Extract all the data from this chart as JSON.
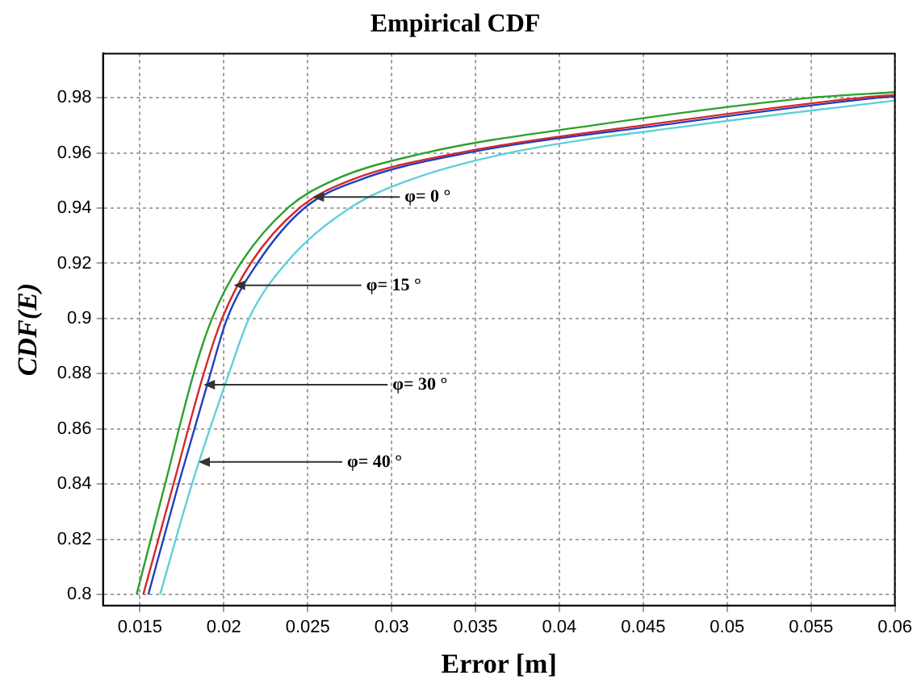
{
  "chart_data": {
    "type": "line",
    "title": "Empirical CDF",
    "xlabel": "Error [m]",
    "ylabel": "CDF(E)",
    "xlim": [
      0.0128,
      0.06
    ],
    "xticks": [
      0.015,
      0.02,
      0.025,
      0.03,
      0.035,
      0.04,
      0.045,
      0.05,
      0.055,
      0.06
    ],
    "ylim": [
      0.796,
      0.996
    ],
    "yticks": [
      0.8,
      0.82,
      0.84,
      0.86,
      0.88,
      0.9,
      0.92,
      0.94,
      0.96,
      0.98
    ],
    "grid": true,
    "legend": false,
    "marker": "none",
    "line_style": "solid",
    "series": [
      {
        "color": "#2ca02c",
        "x": [
          0.0148,
          0.0165,
          0.0182,
          0.0193,
          0.021,
          0.0238,
          0.0265,
          0.032,
          0.042,
          0.055,
          0.06
        ],
        "values": [
          0.8,
          0.84,
          0.88,
          0.9,
          0.92,
          0.94,
          0.95,
          0.96,
          0.97,
          0.98,
          0.982
        ]
      },
      {
        "color": "#d62728",
        "x": [
          0.0152,
          0.017,
          0.0188,
          0.0199,
          0.0216,
          0.0245,
          0.0275,
          0.034,
          0.045,
          0.058,
          0.06
        ],
        "values": [
          0.8,
          0.84,
          0.88,
          0.9,
          0.92,
          0.94,
          0.95,
          0.96,
          0.97,
          0.98,
          0.981
        ]
      },
      {
        "color": "#1f3fbf",
        "x": [
          0.0155,
          0.0173,
          0.0192,
          0.0202,
          0.022,
          0.0248,
          0.028,
          0.0345,
          0.046,
          0.059,
          0.06
        ],
        "values": [
          0.8,
          0.84,
          0.88,
          0.9,
          0.92,
          0.94,
          0.95,
          0.96,
          0.97,
          0.98,
          0.9805
        ]
      },
      {
        "color": "#5fd0d8",
        "x": [
          0.0162,
          0.0181,
          0.0203,
          0.0215,
          0.0237,
          0.0275,
          0.031,
          0.037,
          0.048,
          0.06
        ],
        "values": [
          0.8,
          0.84,
          0.88,
          0.9,
          0.92,
          0.94,
          0.95,
          0.96,
          0.97,
          0.979
        ]
      }
    ],
    "annotations": [
      {
        "text": "φ= 0 °",
        "x": 0.0252,
        "y": 0.944
      },
      {
        "text": "φ= 15 °",
        "x": 0.0205,
        "y": 0.912
      },
      {
        "text": "φ= 30 °",
        "x": 0.0187,
        "y": 0.876
      },
      {
        "text": "φ= 40 °",
        "x": 0.0184,
        "y": 0.848
      }
    ]
  }
}
